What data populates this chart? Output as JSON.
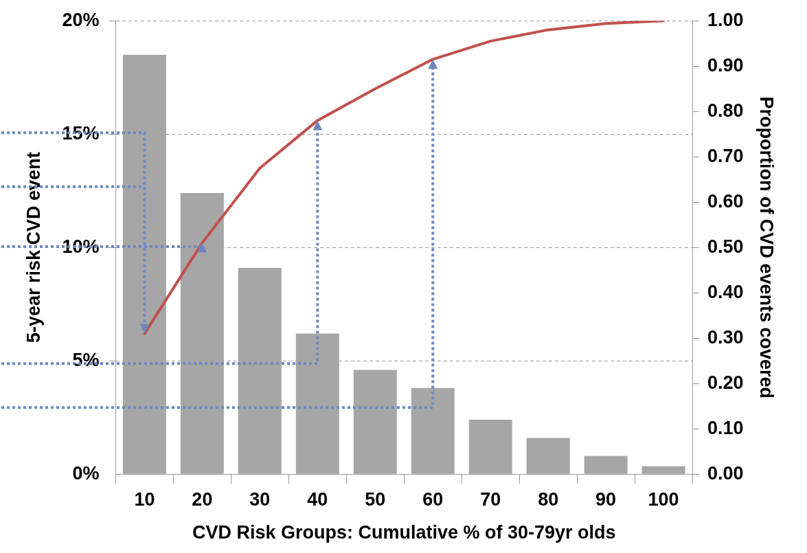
{
  "chart_data": {
    "type": "bar",
    "xlabel": "CVD Risk Groups: Cumulative % of 30-79yr olds",
    "ylabel": "5-year risk CVD event",
    "y2label": "Proportion of CVD events covered",
    "categories": [
      "10",
      "20",
      "30",
      "40",
      "50",
      "60",
      "70",
      "80",
      "90",
      "100"
    ],
    "series": [
      {
        "color": "#a6a6a6",
        "values": [
          18.5,
          12.4,
          9.1,
          6.2,
          4.6,
          3.8,
          2.4,
          1.6,
          0.8,
          0.35
        ]
      },
      {
        "type": "line",
        "axis": "y2",
        "color": "#c0504d",
        "marker": "none",
        "values": [
          0.31,
          0.51,
          0.675,
          0.78,
          0.85,
          0.915,
          0.955,
          0.98,
          0.994,
          1.0
        ]
      }
    ],
    "ylim": [
      0,
      20
    ],
    "yticks": [
      {
        "value": 0,
        "label": "0%"
      },
      {
        "value": 5,
        "label": "5%"
      },
      {
        "value": 10,
        "label": "10%"
      },
      {
        "value": 15,
        "label": "15%"
      },
      {
        "value": 20,
        "label": "20%"
      }
    ],
    "y2lim": [
      0,
      1
    ],
    "y2ticks": [
      {
        "value": 0,
        "label": "0.00"
      },
      {
        "value": 0.1,
        "label": "0.10"
      },
      {
        "value": 0.2,
        "label": "0.20"
      },
      {
        "value": 0.3,
        "label": "0.30"
      },
      {
        "value": 0.4,
        "label": "0.40"
      },
      {
        "value": 0.5,
        "label": "0.50"
      },
      {
        "value": 0.6,
        "label": "0.60"
      },
      {
        "value": 0.7,
        "label": "0.70"
      },
      {
        "value": 0.8,
        "label": "0.80"
      },
      {
        "value": 0.9,
        "label": "0.90"
      },
      {
        "value": 1,
        "label": "1.00"
      }
    ],
    "grid": "y",
    "legend": false
  }
}
